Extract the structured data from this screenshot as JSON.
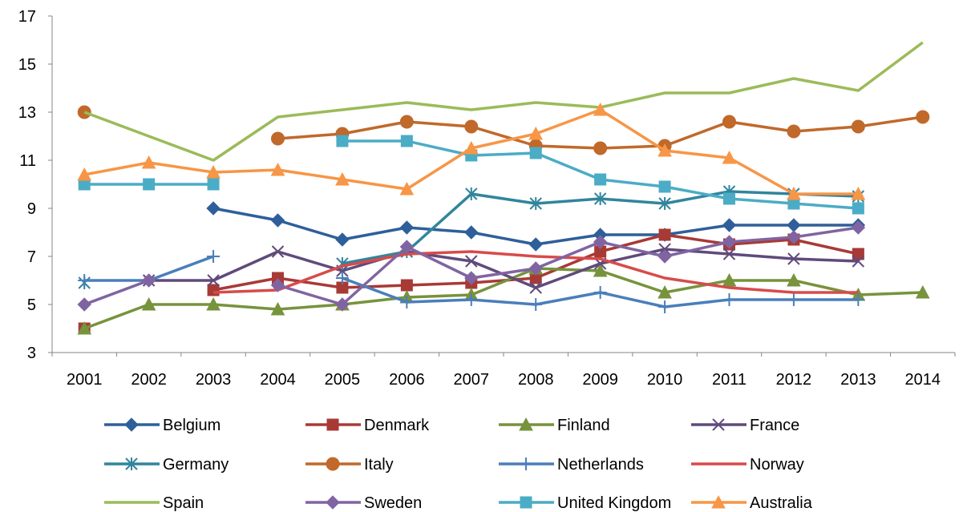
{
  "chart_data": {
    "type": "line",
    "title": "",
    "xlabel": "",
    "ylabel": "",
    "categories": [
      "2001",
      "2002",
      "2003",
      "2004",
      "2005",
      "2006",
      "2007",
      "2008",
      "2009",
      "2010",
      "2011",
      "2012",
      "2013",
      "2014"
    ],
    "ylim": [
      3,
      17
    ],
    "yticks": [
      3,
      5,
      7,
      9,
      11,
      13,
      15,
      17
    ],
    "grid": false,
    "legend_position": "bottom",
    "series": [
      {
        "name": "Belgium",
        "color": "#2E5F9A",
        "marker": "diamond",
        "values": [
          null,
          null,
          9.0,
          8.5,
          7.7,
          8.2,
          8.0,
          7.5,
          7.9,
          7.9,
          8.3,
          8.3,
          8.3,
          null
        ]
      },
      {
        "name": "Denmark",
        "color": "#A83A36",
        "marker": "square",
        "values": [
          4.0,
          null,
          5.6,
          6.1,
          5.7,
          5.8,
          5.9,
          6.1,
          7.2,
          7.9,
          7.5,
          7.7,
          7.1,
          null
        ]
      },
      {
        "name": "Finland",
        "color": "#77933C",
        "marker": "triangle",
        "values": [
          4.0,
          5.0,
          5.0,
          4.8,
          5.0,
          5.3,
          5.4,
          6.5,
          6.4,
          5.5,
          6.0,
          6.0,
          5.4,
          5.5
        ]
      },
      {
        "name": "France",
        "color": "#604A7B",
        "marker": "x",
        "values": [
          null,
          6.0,
          6.0,
          7.2,
          6.4,
          7.2,
          6.8,
          5.7,
          6.7,
          7.3,
          7.1,
          6.9,
          6.8,
          null
        ]
      },
      {
        "name": "Germany",
        "color": "#31859C",
        "marker": "star",
        "values": [
          5.9,
          null,
          null,
          null,
          6.7,
          7.2,
          9.6,
          9.2,
          9.4,
          9.2,
          9.7,
          9.6,
          9.5,
          null
        ]
      },
      {
        "name": "Italy",
        "color": "#C0692B",
        "marker": "circle",
        "values": [
          13.0,
          null,
          null,
          11.9,
          12.1,
          12.6,
          12.4,
          11.6,
          11.5,
          11.6,
          12.6,
          12.2,
          12.4,
          12.8
        ]
      },
      {
        "name": "Netherlands",
        "color": "#4A7EBB",
        "marker": "plus",
        "values": [
          6.0,
          6.0,
          7.0,
          null,
          6.1,
          5.1,
          5.2,
          5.0,
          5.5,
          4.9,
          5.2,
          5.2,
          5.2,
          null
        ]
      },
      {
        "name": "Norway",
        "color": "#D74B4B",
        "marker": "none",
        "values": [
          null,
          null,
          5.5,
          5.6,
          6.6,
          7.1,
          7.2,
          7.0,
          6.9,
          6.1,
          5.7,
          5.5,
          5.5,
          null
        ]
      },
      {
        "name": "Spain",
        "color": "#9BBB59",
        "marker": "none",
        "values": [
          13.0,
          12.0,
          11.0,
          12.8,
          13.1,
          13.4,
          13.1,
          13.4,
          13.2,
          13.8,
          13.8,
          14.4,
          13.9,
          15.9
        ]
      },
      {
        "name": "Sweden",
        "color": "#8064A2",
        "marker": "diamond",
        "values": [
          5.0,
          6.0,
          null,
          5.8,
          5.0,
          7.4,
          6.1,
          6.5,
          7.6,
          7.0,
          7.6,
          7.8,
          8.2,
          null
        ]
      },
      {
        "name": "United Kingdom",
        "color": "#4BACC6",
        "marker": "square",
        "values": [
          10.0,
          10.0,
          10.0,
          null,
          11.8,
          11.8,
          11.2,
          11.3,
          10.2,
          9.9,
          9.4,
          9.2,
          9.0,
          null
        ]
      },
      {
        "name": "Australia",
        "color": "#F79646",
        "marker": "triangle",
        "values": [
          10.4,
          10.9,
          10.5,
          10.6,
          10.2,
          9.8,
          11.5,
          12.1,
          13.1,
          11.4,
          11.1,
          9.6,
          9.6,
          null
        ]
      }
    ]
  }
}
